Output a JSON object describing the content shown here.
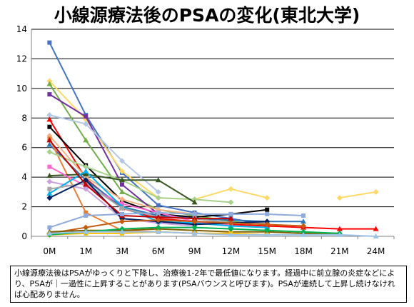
{
  "chart_data": {
    "type": "line",
    "title": "小線源療法後のPSAの変化(東北大学)",
    "categories": [
      "0M",
      "1M",
      "3M",
      "6M",
      "9M",
      "12M",
      "15M",
      "18M",
      "21M",
      "24M"
    ],
    "ylim": [
      0,
      14
    ],
    "yticks": [
      0,
      2,
      4,
      6,
      8,
      10,
      12,
      14
    ],
    "grid": true,
    "legend": "none",
    "series": [
      {
        "color": "#4472C4",
        "values": [
          13.1,
          8.2,
          4.3,
          2.1,
          1.6,
          1.2,
          0.8,
          null,
          null,
          null
        ]
      },
      {
        "color": "#FFD966",
        "values": [
          10.5,
          7.9,
          4.4,
          2.6,
          2.5,
          3.2,
          2.6,
          null,
          2.6,
          3.0
        ]
      },
      {
        "color": "#70AD47",
        "values": [
          10.3,
          6.5,
          3.0,
          1.8,
          1.4,
          1.0,
          0.8,
          null,
          null,
          null
        ]
      },
      {
        "color": "#7030A0",
        "values": [
          9.6,
          8.1,
          3.5,
          1.5,
          1.2,
          0.9,
          null,
          null,
          null,
          null
        ]
      },
      {
        "color": "#B4C7E7",
        "values": [
          8.2,
          7.6,
          5.1,
          3.0,
          null,
          null,
          null,
          null,
          null,
          null
        ]
      },
      {
        "color": "#FF0000",
        "values": [
          7.9,
          3.9,
          1.9,
          1.2,
          1.0,
          0.8,
          0.7,
          0.6,
          0.5,
          0.5
        ]
      },
      {
        "color": "#000000",
        "values": [
          7.4,
          4.8,
          2.4,
          1.5,
          1.3,
          1.5,
          1.8,
          null,
          null,
          null
        ]
      },
      {
        "color": "#F4B183",
        "values": [
          6.8,
          4.0,
          2.5,
          1.8,
          1.5,
          null,
          null,
          null,
          null,
          null
        ]
      },
      {
        "color": "#2E75B6",
        "values": [
          6.2,
          3.8,
          2.0,
          1.4,
          1.2,
          1.1,
          1.0,
          1.0,
          null,
          null
        ]
      },
      {
        "color": "#ED7D31",
        "values": [
          6.6,
          1.6,
          0.4,
          0.3,
          0.2,
          0.2,
          0.1,
          null,
          null,
          null
        ]
      },
      {
        "color": "#A9D18E",
        "values": [
          5.7,
          4.7,
          3.8,
          2.6,
          2.5,
          2.3,
          null,
          null,
          null,
          null
        ]
      },
      {
        "color": "#385723",
        "values": [
          4.1,
          4.2,
          3.8,
          3.8,
          2.3,
          null,
          null,
          null,
          null,
          null
        ]
      },
      {
        "color": "#FF66CC",
        "values": [
          4.7,
          3.4,
          2.2,
          1.6,
          1.0,
          0.8,
          null,
          null,
          null,
          null
        ]
      },
      {
        "color": "#C9A0DC",
        "values": [
          3.7,
          3.2,
          1.2,
          0.9,
          0.7,
          null,
          null,
          null,
          null,
          null
        ]
      },
      {
        "color": "#00B0F0",
        "values": [
          2.9,
          4.4,
          2.0,
          1.0,
          0.9,
          0.7,
          0.6,
          null,
          null,
          null
        ]
      },
      {
        "color": "#A6A6A6",
        "values": [
          3.2,
          3.6,
          1.9,
          1.3,
          1.2,
          0.9,
          0.9,
          null,
          null,
          null
        ]
      },
      {
        "color": "#002060",
        "values": [
          2.6,
          3.8,
          1.2,
          1.0,
          0.8,
          0.9,
          1.0,
          null,
          null,
          null
        ]
      },
      {
        "color": "#C00000",
        "values": [
          6.5,
          3.5,
          1.4,
          1.3,
          1.2,
          1.2,
          null,
          null,
          null,
          null
        ]
      },
      {
        "color": "#8FAADC",
        "values": [
          0.6,
          1.4,
          1.5,
          1.6,
          1.5,
          1.5,
          1.5,
          1.4,
          null,
          null
        ]
      },
      {
        "color": "#C55A11",
        "values": [
          0.2,
          0.6,
          1.0,
          1.1,
          1.0,
          0.9,
          0.8,
          0.7,
          null,
          null
        ]
      },
      {
        "color": "#7F6000",
        "values": [
          0.3,
          0.4,
          0.4,
          0.5,
          0.4,
          0.3,
          0.3,
          0.2,
          0.2,
          null
        ]
      },
      {
        "color": "#FFC000",
        "values": [
          0.1,
          0.2,
          0.2,
          0.3,
          0.2,
          0.2,
          0.1,
          null,
          null,
          null
        ]
      },
      {
        "color": "#00B050",
        "values": [
          0.1,
          0.3,
          0.5,
          0.6,
          0.6,
          0.5,
          0.4,
          0.3,
          0.2,
          null
        ]
      },
      {
        "color": "#9DC3E6",
        "values": [
          0.2,
          0.3,
          0.3,
          0.3,
          0.2,
          0.1,
          0.1,
          0.1,
          0.1,
          0.0
        ]
      }
    ]
  },
  "caption": "小線源療法後はPSAがゆっくりと下降し、治療後1-2年で最低値になります。経過中に前立腺の炎症などにより、PSAが｜一過性に上昇することがあります(PSAバウンスと呼びます)。PSAが連続して上昇し続けなければ心配ありません。"
}
